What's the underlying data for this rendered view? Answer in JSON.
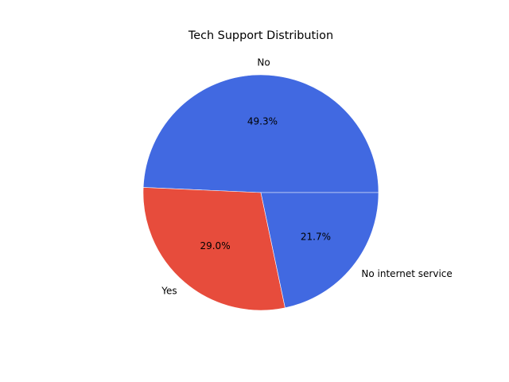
{
  "chart_data": {
    "type": "pie",
    "title": "Tech Support Distribution",
    "slices": [
      {
        "label": "No",
        "value": 49.3,
        "percent_label": "49.3%",
        "color": "#4169e1"
      },
      {
        "label": "Yes",
        "value": 29.0,
        "percent_label": "29.0%",
        "color": "#e74c3c"
      },
      {
        "label": "No internet service",
        "value": 21.7,
        "percent_label": "21.7%",
        "color": "#4169e1"
      }
    ],
    "start_angle_deg": 0,
    "direction": "counterclockwise",
    "slice_edges": "white",
    "legend": "none"
  }
}
